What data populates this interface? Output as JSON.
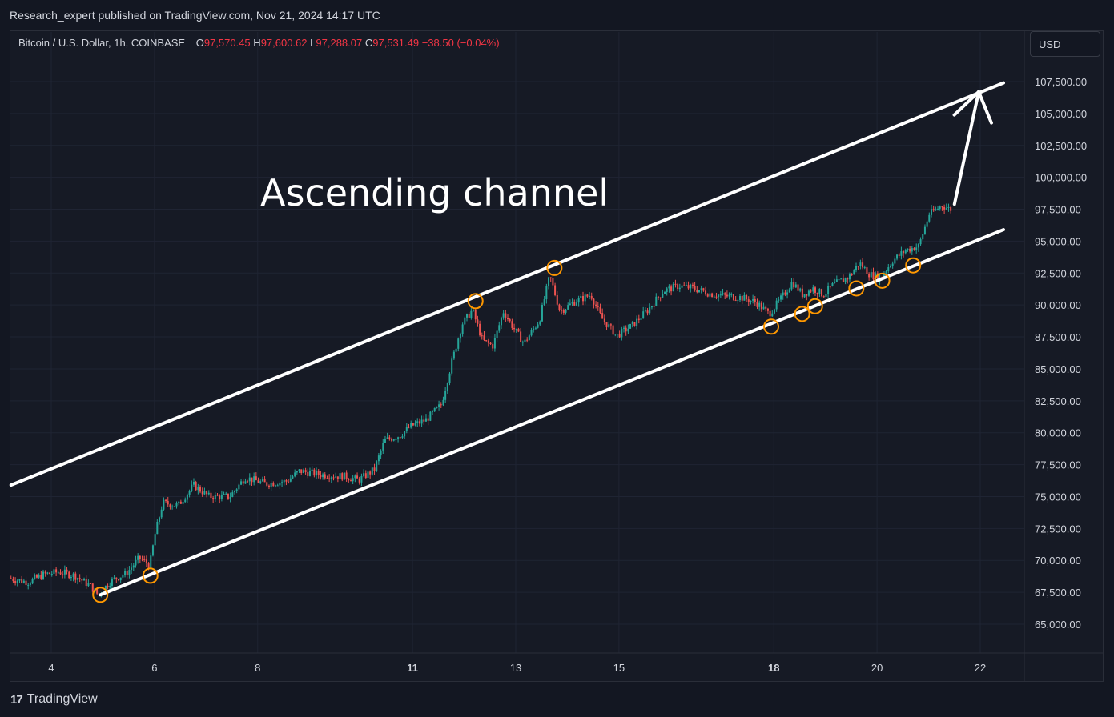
{
  "header": {
    "published": "Research_expert published on TradingView.com, Nov 21, 2024 14:17 UTC"
  },
  "legend": {
    "symbol": "Bitcoin / U.S. Dollar, 1h, COINBASE",
    "o_label": "O",
    "o_value": "97,570.45",
    "h_label": "H",
    "h_value": "97,600.62",
    "l_label": "L",
    "l_value": "97,288.07",
    "c_label": "C",
    "c_value": "97,531.49",
    "change": "−38.50 (−0.04%)"
  },
  "currency_button": "USD",
  "footer": {
    "brand": "TradingView",
    "logo": "17"
  },
  "colors": {
    "background": "#131722",
    "up": "#26a69a",
    "down": "#ef5350",
    "trendline": "#ffffff",
    "touch_marker": "#ff9800",
    "grid": "#1f2433"
  },
  "chart_data": {
    "type": "candlestick",
    "title": "Bitcoin / U.S. Dollar, 1h, COINBASE",
    "annotation": "Ascending channel",
    "x_tick_labels": [
      {
        "label": "4",
        "day": 4,
        "bold": false
      },
      {
        "label": "6",
        "day": 6,
        "bold": false
      },
      {
        "label": "8",
        "day": 8,
        "bold": false
      },
      {
        "label": "11",
        "day": 11,
        "bold": true
      },
      {
        "label": "13",
        "day": 13,
        "bold": false
      },
      {
        "label": "15",
        "day": 15,
        "bold": false
      },
      {
        "label": "18",
        "day": 18,
        "bold": true
      },
      {
        "label": "20",
        "day": 20,
        "bold": false
      },
      {
        "label": "22",
        "day": 22,
        "bold": false
      }
    ],
    "y_ticks": [
      "107,500.00",
      "105,000.00",
      "102,500.00",
      "100,000.00",
      "97,500.00",
      "95,000.00",
      "92,500.00",
      "90,000.00",
      "87,500.00",
      "85,000.00",
      "82,500.00",
      "80,000.00",
      "77,500.00",
      "75,000.00",
      "72,500.00",
      "70,000.00",
      "67,500.00",
      "65,000.00"
    ],
    "ylim": [
      63500,
      109000
    ],
    "xlim_days": [
      3.22,
      22.45
    ],
    "price_path": [
      [
        3.22,
        68600
      ],
      [
        3.6,
        68300
      ],
      [
        3.9,
        68900
      ],
      [
        4.2,
        69100
      ],
      [
        4.5,
        68800
      ],
      [
        4.8,
        68000
      ],
      [
        4.95,
        67300
      ],
      [
        5.2,
        68400
      ],
      [
        5.5,
        69000
      ],
      [
        5.75,
        70200
      ],
      [
        5.95,
        69600
      ],
      [
        6.05,
        72000
      ],
      [
        6.2,
        74500
      ],
      [
        6.5,
        74300
      ],
      [
        6.8,
        75900
      ],
      [
        7.1,
        75000
      ],
      [
        7.5,
        75000
      ],
      [
        7.8,
        76500
      ],
      [
        8.2,
        76000
      ],
      [
        8.6,
        76200
      ],
      [
        8.85,
        77000
      ],
      [
        9.3,
        76700
      ],
      [
        9.7,
        76600
      ],
      [
        10.0,
        76300
      ],
      [
        10.3,
        77100
      ],
      [
        10.5,
        79400
      ],
      [
        10.8,
        79800
      ],
      [
        11.0,
        80500
      ],
      [
        11.3,
        81000
      ],
      [
        11.6,
        82200
      ],
      [
        11.8,
        85500
      ],
      [
        12.0,
        88500
      ],
      [
        12.2,
        89600
      ],
      [
        12.4,
        87200
      ],
      [
        12.6,
        86800
      ],
      [
        12.8,
        89500
      ],
      [
        13.0,
        88200
      ],
      [
        13.2,
        87000
      ],
      [
        13.5,
        88800
      ],
      [
        13.7,
        92300
      ],
      [
        13.9,
        89500
      ],
      [
        14.2,
        90300
      ],
      [
        14.5,
        90800
      ],
      [
        14.7,
        89000
      ],
      [
        15.0,
        87600
      ],
      [
        15.3,
        88400
      ],
      [
        15.6,
        89600
      ],
      [
        15.9,
        91100
      ],
      [
        16.2,
        91500
      ],
      [
        16.5,
        91300
      ],
      [
        16.8,
        90900
      ],
      [
        17.1,
        90700
      ],
      [
        17.4,
        90600
      ],
      [
        17.7,
        90200
      ],
      [
        17.95,
        89300
      ],
      [
        18.2,
        90600
      ],
      [
        18.4,
        91800
      ],
      [
        18.6,
        90800
      ],
      [
        18.8,
        91300
      ],
      [
        19.0,
        90800
      ],
      [
        19.2,
        91600
      ],
      [
        19.5,
        92200
      ],
      [
        19.7,
        93300
      ],
      [
        19.9,
        92400
      ],
      [
        20.1,
        92100
      ],
      [
        20.35,
        93500
      ],
      [
        20.6,
        94300
      ],
      [
        20.85,
        94600
      ],
      [
        21.05,
        97100
      ],
      [
        21.3,
        97800
      ],
      [
        21.45,
        97500
      ]
    ],
    "channel": {
      "upper": {
        "start": {
          "day": 3.22,
          "price": 75900
        },
        "end": {
          "day": 22.45,
          "price": 107400
        }
      },
      "lower": {
        "start": {
          "day": 4.95,
          "price": 67300
        },
        "end": {
          "day": 22.45,
          "price": 95900
        }
      }
    },
    "touch_points": [
      {
        "day": 4.95,
        "price": 67300
      },
      {
        "day": 5.92,
        "price": 68800
      },
      {
        "day": 12.22,
        "price": 90300
      },
      {
        "day": 13.75,
        "price": 92900
      },
      {
        "day": 17.95,
        "price": 88300
      },
      {
        "day": 18.55,
        "price": 89300
      },
      {
        "day": 18.8,
        "price": 89900
      },
      {
        "day": 19.6,
        "price": 91300
      },
      {
        "day": 20.1,
        "price": 91900
      },
      {
        "day": 20.7,
        "price": 93100
      }
    ],
    "arrow": {
      "from": {
        "day": 21.5,
        "price": 97900
      },
      "to": {
        "day": 21.97,
        "price": 106700
      }
    }
  }
}
